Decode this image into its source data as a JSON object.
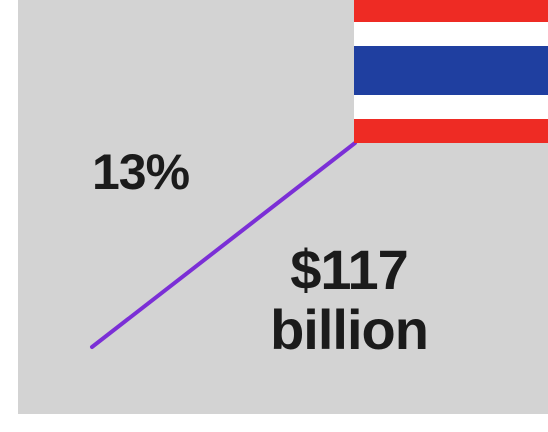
{
  "stats": {
    "growth": "13%",
    "amount_value": "$117",
    "amount_unit": "billion"
  },
  "flag": {
    "icon": "thailand-flag-icon",
    "colors": {
      "red": "#ee2b24",
      "white": "#ffffff",
      "blue": "#1f3fa0"
    }
  },
  "colors": {
    "background": "#d3d3d3",
    "trend_line": "#7b2fd6",
    "text": "#1b1b1b"
  }
}
